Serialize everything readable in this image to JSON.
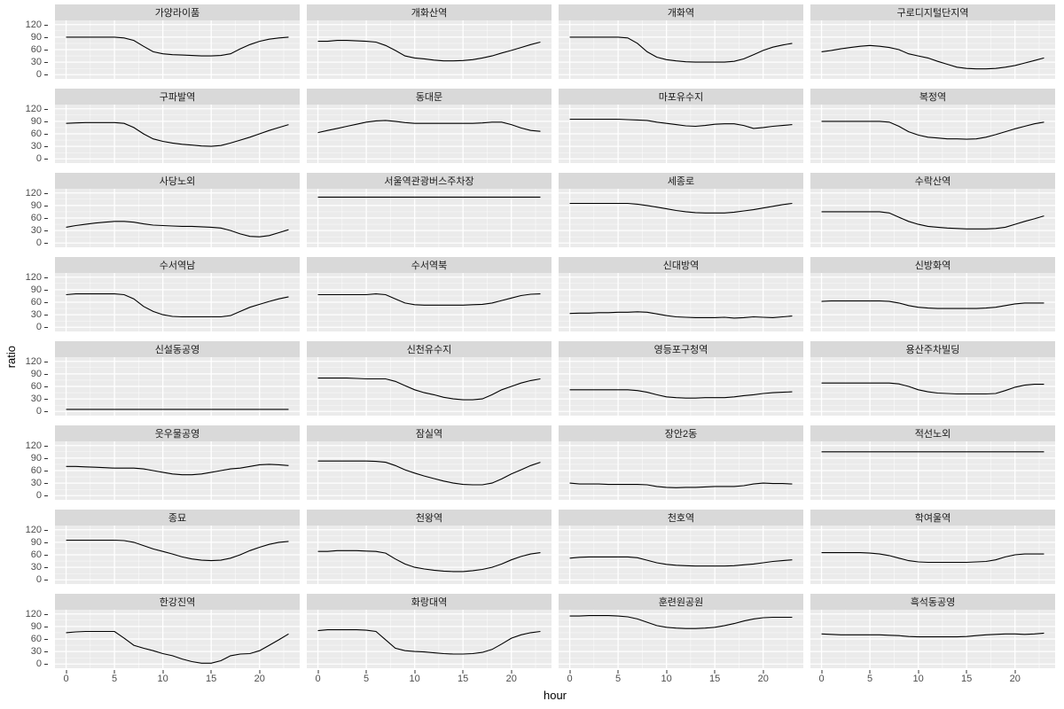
{
  "figure": {
    "ylabel": "ratio",
    "xlabel": "hour",
    "y_ticks": [
      120,
      90,
      60,
      30,
      0
    ],
    "x_ticks": [
      0,
      5,
      10,
      15,
      20
    ],
    "colors": {
      "panel_bg": "#ebebeb",
      "strip_bg": "#d9d9d9",
      "grid": "#ffffff",
      "line": "#000000",
      "tick_text": "#4d4d4d",
      "axis_title": "#000000"
    }
  },
  "chart_data": {
    "type": "line",
    "layout": "facet_wrap 8 rows x 4 cols, shared axes",
    "xlabel": "hour",
    "ylabel": "ratio",
    "xlim": [
      0,
      23
    ],
    "ylim": [
      0,
      120
    ],
    "x": [
      0,
      1,
      2,
      3,
      4,
      5,
      6,
      7,
      8,
      9,
      10,
      11,
      12,
      13,
      14,
      15,
      16,
      17,
      18,
      19,
      20,
      21,
      22,
      23
    ],
    "panels": [
      {
        "title": "가양라이품",
        "values": [
          90,
          90,
          90,
          90,
          90,
          90,
          88,
          82,
          68,
          55,
          50,
          48,
          47,
          46,
          45,
          45,
          46,
          50,
          62,
          72,
          80,
          85,
          88,
          90
        ]
      },
      {
        "title": "개화산역",
        "values": [
          80,
          80,
          82,
          82,
          81,
          80,
          78,
          70,
          58,
          45,
          40,
          38,
          35,
          33,
          33,
          34,
          36,
          40,
          45,
          52,
          58,
          65,
          72,
          78
        ]
      },
      {
        "title": "개화역",
        "values": [
          90,
          90,
          90,
          90,
          90,
          90,
          88,
          75,
          55,
          42,
          36,
          33,
          31,
          30,
          30,
          30,
          30,
          32,
          38,
          48,
          58,
          66,
          71,
          75
        ]
      },
      {
        "title": "구로디지털단지역",
        "values": [
          55,
          58,
          62,
          65,
          68,
          70,
          68,
          65,
          60,
          50,
          45,
          40,
          32,
          25,
          18,
          15,
          14,
          14,
          15,
          18,
          22,
          28,
          34,
          40
        ]
      },
      {
        "title": "구파발역",
        "values": [
          85,
          86,
          87,
          87,
          87,
          87,
          85,
          75,
          60,
          48,
          42,
          38,
          35,
          33,
          31,
          30,
          32,
          38,
          45,
          52,
          60,
          68,
          75,
          82
        ]
      },
      {
        "title": "동대문",
        "values": [
          63,
          68,
          73,
          78,
          83,
          88,
          91,
          92,
          90,
          87,
          85,
          85,
          85,
          85,
          85,
          85,
          85,
          86,
          88,
          88,
          82,
          74,
          68,
          66
        ]
      },
      {
        "title": "마포유수지",
        "values": [
          95,
          95,
          95,
          95,
          95,
          95,
          94,
          93,
          92,
          88,
          85,
          82,
          79,
          78,
          80,
          83,
          84,
          84,
          80,
          73,
          75,
          78,
          80,
          82
        ]
      },
      {
        "title": "복정역",
        "values": [
          90,
          90,
          90,
          90,
          90,
          90,
          90,
          88,
          78,
          65,
          57,
          52,
          50,
          48,
          48,
          47,
          48,
          52,
          58,
          65,
          72,
          78,
          84,
          88
        ]
      },
      {
        "title": "사당노외",
        "values": [
          38,
          42,
          45,
          48,
          50,
          52,
          52,
          50,
          46,
          43,
          42,
          41,
          40,
          40,
          39,
          38,
          36,
          30,
          22,
          16,
          15,
          18,
          25,
          32
        ]
      },
      {
        "title": "서울역관광버스주차장",
        "values": [
          110,
          110,
          110,
          110,
          110,
          110,
          110,
          110,
          110,
          110,
          110,
          110,
          110,
          110,
          110,
          110,
          110,
          110,
          110,
          110,
          110,
          110,
          110,
          110
        ]
      },
      {
        "title": "세종로",
        "values": [
          95,
          95,
          95,
          95,
          95,
          95,
          95,
          93,
          90,
          86,
          82,
          78,
          75,
          73,
          72,
          72,
          72,
          74,
          77,
          80,
          84,
          88,
          92,
          95
        ]
      },
      {
        "title": "수락산역",
        "values": [
          75,
          75,
          75,
          75,
          75,
          75,
          75,
          72,
          62,
          52,
          45,
          40,
          38,
          36,
          35,
          34,
          34,
          34,
          35,
          38,
          45,
          52,
          58,
          65
        ]
      },
      {
        "title": "수서역남",
        "values": [
          78,
          80,
          80,
          80,
          80,
          80,
          78,
          68,
          50,
          38,
          30,
          26,
          25,
          25,
          25,
          25,
          25,
          28,
          38,
          48,
          55,
          62,
          68,
          73
        ]
      },
      {
        "title": "수서역북",
        "values": [
          78,
          78,
          78,
          78,
          78,
          78,
          80,
          78,
          68,
          58,
          54,
          53,
          53,
          53,
          53,
          53,
          54,
          55,
          58,
          64,
          70,
          76,
          79,
          80
        ]
      },
      {
        "title": "신대방역",
        "values": [
          33,
          34,
          34,
          35,
          35,
          36,
          36,
          37,
          36,
          32,
          28,
          25,
          24,
          23,
          23,
          23,
          24,
          22,
          23,
          25,
          24,
          23,
          25,
          27
        ]
      },
      {
        "title": "신방화역",
        "values": [
          62,
          63,
          63,
          63,
          63,
          63,
          63,
          62,
          58,
          52,
          48,
          46,
          45,
          45,
          45,
          45,
          45,
          46,
          48,
          52,
          56,
          58,
          58,
          58
        ]
      },
      {
        "title": "신설동공영",
        "values": [
          5,
          5,
          5,
          5,
          5,
          5,
          5,
          5,
          5,
          5,
          5,
          5,
          5,
          5,
          5,
          5,
          5,
          5,
          5,
          5,
          5,
          5,
          5,
          5
        ]
      },
      {
        "title": "신천유수지",
        "values": [
          80,
          80,
          80,
          80,
          79,
          78,
          78,
          78,
          72,
          62,
          52,
          45,
          40,
          34,
          30,
          28,
          28,
          30,
          40,
          52,
          60,
          68,
          74,
          78
        ]
      },
      {
        "title": "영등포구청역",
        "values": [
          52,
          52,
          52,
          52,
          52,
          52,
          52,
          50,
          46,
          40,
          35,
          33,
          32,
          32,
          33,
          33,
          33,
          35,
          38,
          40,
          43,
          45,
          46,
          47
        ]
      },
      {
        "title": "용산주차빌딩",
        "values": [
          68,
          68,
          68,
          68,
          68,
          68,
          68,
          68,
          66,
          60,
          52,
          47,
          44,
          43,
          42,
          42,
          42,
          42,
          43,
          50,
          58,
          63,
          65,
          65
        ]
      },
      {
        "title": "웃우물공영",
        "values": [
          70,
          70,
          69,
          68,
          67,
          66,
          66,
          66,
          64,
          60,
          56,
          52,
          50,
          50,
          52,
          56,
          60,
          64,
          66,
          70,
          74,
          75,
          74,
          72
        ]
      },
      {
        "title": "잠실역",
        "values": [
          83,
          83,
          83,
          83,
          83,
          83,
          82,
          80,
          72,
          62,
          54,
          47,
          41,
          35,
          30,
          27,
          26,
          26,
          30,
          40,
          52,
          62,
          72,
          80
        ]
      },
      {
        "title": "장안2동",
        "values": [
          30,
          28,
          28,
          28,
          27,
          27,
          27,
          27,
          26,
          22,
          20,
          19,
          20,
          20,
          21,
          22,
          22,
          22,
          24,
          28,
          30,
          29,
          29,
          28
        ]
      },
      {
        "title": "적선노외",
        "values": [
          105,
          105,
          105,
          105,
          105,
          105,
          105,
          105,
          105,
          105,
          105,
          105,
          105,
          105,
          105,
          105,
          105,
          105,
          105,
          105,
          105,
          105,
          105,
          105
        ]
      },
      {
        "title": "종묘",
        "values": [
          95,
          95,
          95,
          95,
          95,
          95,
          94,
          90,
          82,
          74,
          68,
          62,
          55,
          50,
          47,
          46,
          47,
          52,
          60,
          70,
          78,
          85,
          90,
          92
        ]
      },
      {
        "title": "천왕역",
        "values": [
          68,
          68,
          70,
          70,
          70,
          69,
          68,
          64,
          50,
          38,
          30,
          26,
          23,
          21,
          20,
          20,
          22,
          25,
          30,
          38,
          48,
          56,
          62,
          65
        ]
      },
      {
        "title": "천호역",
        "values": [
          52,
          54,
          55,
          55,
          55,
          55,
          55,
          53,
          47,
          41,
          37,
          35,
          34,
          33,
          33,
          33,
          33,
          34,
          36,
          38,
          41,
          44,
          46,
          48
        ]
      },
      {
        "title": "학여울역",
        "values": [
          65,
          65,
          65,
          65,
          65,
          64,
          62,
          58,
          52,
          46,
          43,
          42,
          42,
          42,
          42,
          42,
          43,
          44,
          48,
          55,
          60,
          62,
          62,
          62
        ]
      },
      {
        "title": "한강진역",
        "values": [
          75,
          77,
          78,
          78,
          78,
          78,
          62,
          45,
          38,
          32,
          25,
          20,
          12,
          6,
          2,
          2,
          8,
          20,
          24,
          25,
          32,
          45,
          58,
          72
        ]
      },
      {
        "title": "화랑대역",
        "values": [
          80,
          82,
          82,
          82,
          82,
          81,
          78,
          58,
          38,
          32,
          30,
          29,
          27,
          25,
          24,
          24,
          25,
          28,
          35,
          48,
          62,
          70,
          75,
          78
        ]
      },
      {
        "title": "훈련원공원",
        "values": [
          115,
          115,
          116,
          116,
          116,
          115,
          113,
          108,
          100,
          92,
          88,
          86,
          85,
          85,
          86,
          88,
          92,
          97,
          103,
          108,
          111,
          112,
          112,
          112
        ]
      },
      {
        "title": "흑석동공영",
        "values": [
          72,
          71,
          70,
          70,
          70,
          70,
          70,
          69,
          68,
          66,
          65,
          65,
          65,
          65,
          65,
          66,
          68,
          70,
          71,
          72,
          72,
          71,
          72,
          74
        ]
      }
    ]
  }
}
